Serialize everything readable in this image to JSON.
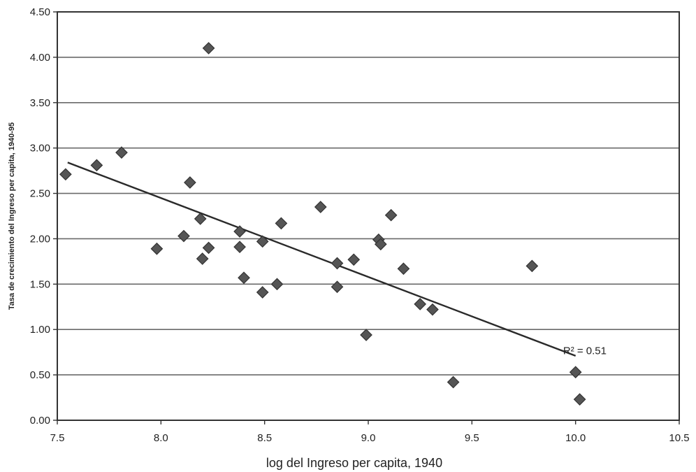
{
  "chart_data": {
    "type": "scatter",
    "xlabel": "log del Ingreso per capita, 1940",
    "ylabel": "Tasa de crecimiento del Ingreso per capita, 1940-95",
    "xlim": [
      7.5,
      10.5
    ],
    "ylim": [
      0.0,
      4.5
    ],
    "x_ticks": [
      "7.5",
      "8.0",
      "8.5",
      "9.0",
      "9.5",
      "10.0",
      "10.5"
    ],
    "y_ticks": [
      "0.00",
      "0.50",
      "1.00",
      "1.50",
      "2.00",
      "2.50",
      "3.00",
      "3.50",
      "4.00",
      "4.50"
    ],
    "grid": true,
    "points": [
      {
        "x": 7.54,
        "y": 2.71
      },
      {
        "x": 7.69,
        "y": 2.81
      },
      {
        "x": 7.81,
        "y": 2.95
      },
      {
        "x": 7.98,
        "y": 1.89
      },
      {
        "x": 8.11,
        "y": 2.03
      },
      {
        "x": 8.14,
        "y": 2.62
      },
      {
        "x": 8.19,
        "y": 2.22
      },
      {
        "x": 8.2,
        "y": 1.78
      },
      {
        "x": 8.23,
        "y": 1.9
      },
      {
        "x": 8.23,
        "y": 4.1
      },
      {
        "x": 8.38,
        "y": 2.08
      },
      {
        "x": 8.38,
        "y": 1.91
      },
      {
        "x": 8.4,
        "y": 1.57
      },
      {
        "x": 8.49,
        "y": 1.97
      },
      {
        "x": 8.49,
        "y": 1.41
      },
      {
        "x": 8.56,
        "y": 1.5
      },
      {
        "x": 8.58,
        "y": 2.17
      },
      {
        "x": 8.77,
        "y": 2.35
      },
      {
        "x": 8.85,
        "y": 1.73
      },
      {
        "x": 8.85,
        "y": 1.47
      },
      {
        "x": 8.93,
        "y": 1.77
      },
      {
        "x": 8.99,
        "y": 0.94
      },
      {
        "x": 9.05,
        "y": 1.99
      },
      {
        "x": 9.06,
        "y": 1.94
      },
      {
        "x": 9.11,
        "y": 2.26
      },
      {
        "x": 9.17,
        "y": 1.67
      },
      {
        "x": 9.25,
        "y": 1.28
      },
      {
        "x": 9.31,
        "y": 1.22
      },
      {
        "x": 9.41,
        "y": 0.42
      },
      {
        "x": 9.79,
        "y": 1.7
      },
      {
        "x": 10.0,
        "y": 0.53
      },
      {
        "x": 10.02,
        "y": 0.23
      }
    ],
    "trendline": {
      "x": [
        7.55,
        10.0
      ],
      "y": [
        2.84,
        0.71
      ]
    },
    "annotation": "R² = 0.51"
  }
}
